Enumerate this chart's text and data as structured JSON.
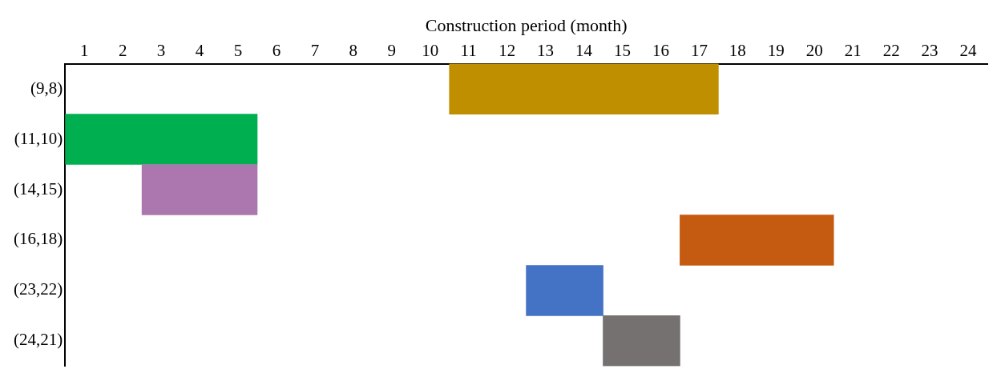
{
  "chart_data": {
    "type": "bar",
    "orientation": "horizontal",
    "xlabel": "Construction period (month)",
    "categories": [
      "(9,8)",
      "(11,10)",
      "(14,15)",
      "(16,18)",
      "(23,22)",
      "(24,21)"
    ],
    "base": [
      10,
      0,
      2,
      16,
      12,
      14
    ],
    "values": [
      7,
      5,
      3,
      4,
      2,
      2
    ],
    "colors": [
      "#bf8f00",
      "#00b050",
      "#ab77ae",
      "#c55a11",
      "#4472c4",
      "#767171"
    ],
    "xlim": [
      0,
      24
    ],
    "xticks": [
      {
        "value": 0.5,
        "label": "1"
      },
      {
        "value": 1.5,
        "label": "2"
      },
      {
        "value": 2.5,
        "label": "3"
      },
      {
        "value": 3.5,
        "label": "4"
      },
      {
        "value": 4.5,
        "label": "5"
      },
      {
        "value": 5.5,
        "label": "6"
      },
      {
        "value": 6.5,
        "label": "7"
      },
      {
        "value": 7.5,
        "label": "8"
      },
      {
        "value": 8.5,
        "label": "9"
      },
      {
        "value": 9.5,
        "label": "10"
      },
      {
        "value": 10.5,
        "label": "11"
      },
      {
        "value": 11.5,
        "label": "12"
      },
      {
        "value": 12.5,
        "label": "13"
      },
      {
        "value": 13.5,
        "label": "14"
      },
      {
        "value": 14.5,
        "label": "15"
      },
      {
        "value": 15.5,
        "label": "16"
      },
      {
        "value": 16.5,
        "label": "17"
      },
      {
        "value": 17.5,
        "label": "18"
      },
      {
        "value": 18.5,
        "label": "19"
      },
      {
        "value": 19.5,
        "label": "20"
      },
      {
        "value": 20.5,
        "label": "21"
      },
      {
        "value": 21.5,
        "label": "22"
      },
      {
        "value": 22.5,
        "label": "23"
      },
      {
        "value": 23.5,
        "label": "24"
      }
    ]
  }
}
